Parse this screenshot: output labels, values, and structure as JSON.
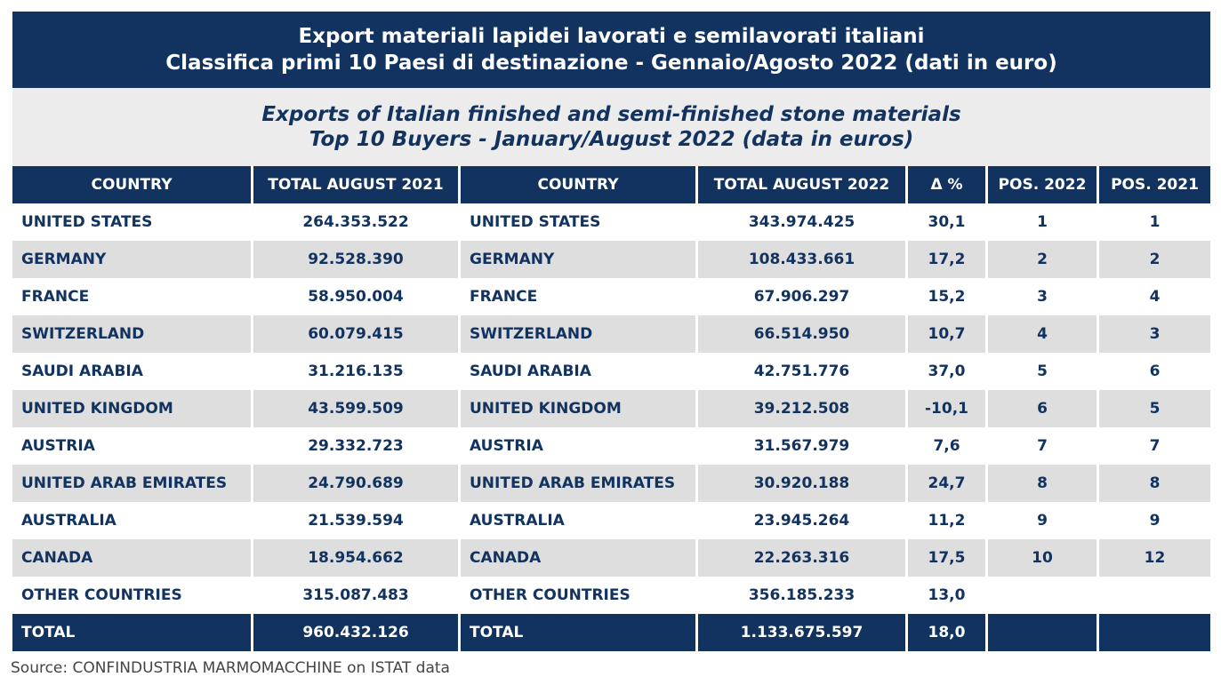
{
  "title_it": {
    "line1": "Export materiali lapidei lavorati e semilavorati italiani",
    "line2": "Classifica primi 10 Paesi di destinazione - Gennaio/Agosto 2022 (dati in euro)"
  },
  "title_en": {
    "line1": "Exports of Italian finished and semi-finished stone materials",
    "line2": "Top 10 Buyers - January/August 2022 (data in euros)"
  },
  "headers": {
    "country_2021": "COUNTRY",
    "total_2021": "TOTAL AUGUST 2021",
    "country_2022": "COUNTRY",
    "total_2022": "TOTAL AUGUST 2022",
    "delta": "Δ %",
    "pos_2022": "POS. 2022",
    "pos_2021": "POS. 2021"
  },
  "rows": [
    {
      "country_2021": "UNITED STATES",
      "total_2021": "264.353.522",
      "country_2022": "UNITED STATES",
      "total_2022": "343.974.425",
      "delta": "30,1",
      "pos_2022": "1",
      "pos_2021": "1"
    },
    {
      "country_2021": "GERMANY",
      "total_2021": "92.528.390",
      "country_2022": "GERMANY",
      "total_2022": "108.433.661",
      "delta": "17,2",
      "pos_2022": "2",
      "pos_2021": "2"
    },
    {
      "country_2021": "FRANCE",
      "total_2021": "58.950.004",
      "country_2022": "FRANCE",
      "total_2022": "67.906.297",
      "delta": "15,2",
      "pos_2022": "3",
      "pos_2021": "4"
    },
    {
      "country_2021": "SWITZERLAND",
      "total_2021": "60.079.415",
      "country_2022": "SWITZERLAND",
      "total_2022": "66.514.950",
      "delta": "10,7",
      "pos_2022": "4",
      "pos_2021": "3"
    },
    {
      "country_2021": "SAUDI ARABIA",
      "total_2021": "31.216.135",
      "country_2022": "SAUDI ARABIA",
      "total_2022": "42.751.776",
      "delta": "37,0",
      "pos_2022": "5",
      "pos_2021": "6"
    },
    {
      "country_2021": "UNITED KINGDOM",
      "total_2021": "43.599.509",
      "country_2022": "UNITED KINGDOM",
      "total_2022": "39.212.508",
      "delta": "-10,1",
      "pos_2022": "6",
      "pos_2021": "5"
    },
    {
      "country_2021": "AUSTRIA",
      "total_2021": "29.332.723",
      "country_2022": "AUSTRIA",
      "total_2022": "31.567.979",
      "delta": "7,6",
      "pos_2022": "7",
      "pos_2021": "7"
    },
    {
      "country_2021": "UNITED ARAB EMIRATES",
      "total_2021": "24.790.689",
      "country_2022": "UNITED ARAB EMIRATES",
      "total_2022": "30.920.188",
      "delta": "24,7",
      "pos_2022": "8",
      "pos_2021": "8"
    },
    {
      "country_2021": "AUSTRALIA",
      "total_2021": "21.539.594",
      "country_2022": "AUSTRALIA",
      "total_2022": "23.945.264",
      "delta": "11,2",
      "pos_2022": "9",
      "pos_2021": "9"
    },
    {
      "country_2021": "CANADA",
      "total_2021": "18.954.662",
      "country_2022": "CANADA",
      "total_2022": "22.263.316",
      "delta": "17,5",
      "pos_2022": "10",
      "pos_2021": "12"
    },
    {
      "country_2021": "OTHER COUNTRIES",
      "total_2021": "315.087.483",
      "country_2022": "OTHER COUNTRIES",
      "total_2022": "356.185.233",
      "delta": "13,0",
      "pos_2022": "",
      "pos_2021": ""
    }
  ],
  "total_row": {
    "country_2021": "TOTAL",
    "total_2021": "960.432.126",
    "country_2022": "TOTAL",
    "total_2022": "1.133.675.597",
    "delta": "18,0",
    "pos_2022": "",
    "pos_2021": ""
  },
  "source": "Source: CONFINDUSTRIA MARMOMACCHINE on ISTAT data",
  "colors": {
    "header_bg": "#123360",
    "stripe_bg": "#dedede",
    "subtitle_bg": "#ececec"
  }
}
